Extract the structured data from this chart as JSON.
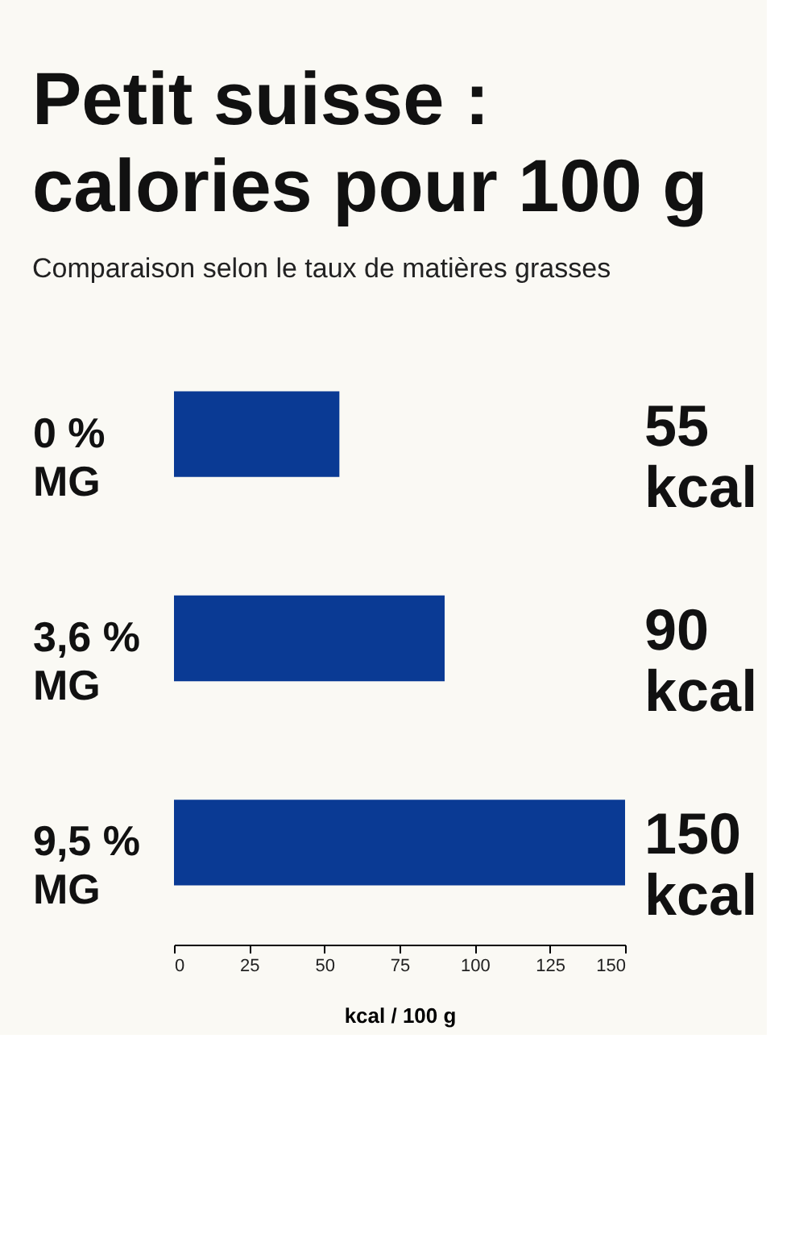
{
  "chart_data": {
    "type": "bar",
    "orientation": "horizontal",
    "title": "Petit suisse :\ncalories pour 100 g",
    "subtitle": "Comparaison selon le taux de matières grasses",
    "categories": [
      "0 %\nMG",
      "3,6 %\nMG",
      "9,5 %\nMG"
    ],
    "values": [
      55,
      90,
      150
    ],
    "color": "#0a3a94",
    "value_labels": [
      "55\nkcal",
      "90\nkcal",
      "150\nkcal"
    ],
    "xlim": [
      0,
      150
    ],
    "xticks": [
      0,
      25,
      50,
      75,
      100,
      125,
      150
    ],
    "xlabel": "kcal / 100 g",
    "grid": false
  }
}
